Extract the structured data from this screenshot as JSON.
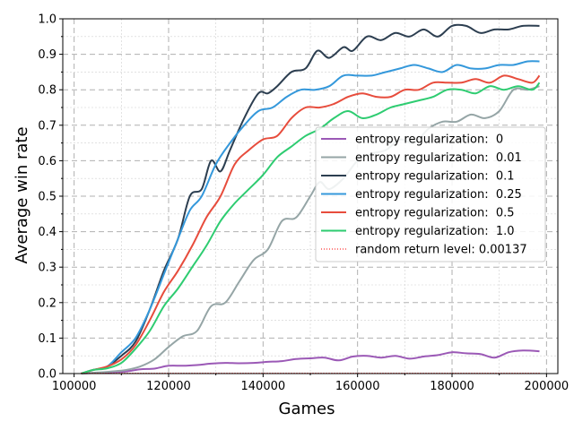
{
  "chart_data": {
    "type": "line",
    "title": "",
    "xlabel": "Games",
    "ylabel": "Average win rate",
    "xlim": [
      97600,
      202400
    ],
    "ylim": [
      0,
      1
    ],
    "xticks": [
      100000,
      120000,
      140000,
      160000,
      180000,
      200000
    ],
    "xtick_labels": [
      "100000",
      "120000",
      "140000",
      "160000",
      "180000",
      "200000"
    ],
    "yticks": [
      0,
      0.1,
      0.2,
      0.3,
      0.4,
      0.5,
      0.6,
      0.7,
      0.8,
      0.9,
      1.0
    ],
    "ytick_labels": [
      "0.0",
      "0.1",
      "0.2",
      "0.3",
      "0.4",
      "0.5",
      "0.6",
      "0.7",
      "0.8",
      "0.9",
      "1.0"
    ],
    "grid": true,
    "legend_position": "center-right",
    "series": [
      {
        "name": "entropy regularization:  0",
        "color": "#9b59b6",
        "style": "solid",
        "x": [
          101500,
          105000,
          108000,
          111000,
          114000,
          117000,
          120000,
          123000,
          126000,
          129000,
          132000,
          135000,
          138000,
          141000,
          144000,
          147000,
          150000,
          153000,
          156000,
          159000,
          162000,
          165000,
          168000,
          171000,
          174000,
          177000,
          180000,
          183000,
          186000,
          189000,
          192000,
          195000,
          198500
        ],
        "y": [
          0,
          0.002,
          0.004,
          0.006,
          0.012,
          0.014,
          0.022,
          0.022,
          0.024,
          0.028,
          0.03,
          0.029,
          0.03,
          0.033,
          0.035,
          0.041,
          0.043,
          0.045,
          0.037,
          0.048,
          0.05,
          0.045,
          0.05,
          0.042,
          0.048,
          0.052,
          0.06,
          0.057,
          0.055,
          0.045,
          0.06,
          0.065,
          0.063
        ]
      },
      {
        "name": "entropy regularization:  0.01",
        "color": "#95a5a6",
        "style": "solid",
        "x": [
          101500,
          105000,
          108000,
          111000,
          114000,
          117000,
          120000,
          123000,
          126000,
          129000,
          132000,
          135000,
          138000,
          141000,
          144000,
          147000,
          150000,
          152000,
          154000,
          157000,
          160000,
          163000,
          166000,
          169000,
          172000,
          175000,
          178000,
          181000,
          184000,
          187000,
          190000,
          193000,
          196000,
          198500
        ],
        "y": [
          0,
          0.003,
          0.006,
          0.01,
          0.02,
          0.04,
          0.075,
          0.105,
          0.12,
          0.19,
          0.2,
          0.26,
          0.32,
          0.35,
          0.43,
          0.44,
          0.5,
          0.54,
          0.52,
          0.55,
          0.6,
          0.62,
          0.63,
          0.66,
          0.65,
          0.69,
          0.71,
          0.71,
          0.73,
          0.72,
          0.74,
          0.8,
          0.8,
          0.81
        ]
      },
      {
        "name": "entropy regularization:  0.1",
        "color": "#2c3e50",
        "style": "solid",
        "x": [
          101500,
          104000,
          107000,
          110000,
          113000,
          116000,
          119000,
          122000,
          124500,
          127000,
          129000,
          131000,
          133000,
          136000,
          139000,
          141000,
          143000,
          146000,
          149000,
          151500,
          154000,
          157000,
          159000,
          162000,
          165000,
          168000,
          171000,
          174000,
          177000,
          180000,
          183000,
          186000,
          189000,
          192000,
          195000,
          198500
        ],
        "y": [
          0,
          0.01,
          0.02,
          0.05,
          0.09,
          0.18,
          0.29,
          0.38,
          0.5,
          0.52,
          0.6,
          0.57,
          0.63,
          0.72,
          0.79,
          0.79,
          0.81,
          0.85,
          0.86,
          0.91,
          0.89,
          0.92,
          0.91,
          0.95,
          0.94,
          0.96,
          0.95,
          0.97,
          0.95,
          0.98,
          0.98,
          0.96,
          0.97,
          0.97,
          0.98,
          0.98
        ]
      },
      {
        "name": "entropy regularization:  0.25",
        "color": "#3498db",
        "style": "solid",
        "x": [
          101500,
          104000,
          107000,
          110000,
          113000,
          116000,
          119000,
          122000,
          124500,
          127000,
          130000,
          133000,
          136000,
          139000,
          142000,
          145000,
          148000,
          151000,
          154000,
          157000,
          160000,
          163000,
          166000,
          169000,
          172000,
          175000,
          178000,
          181000,
          184000,
          187000,
          190000,
          193000,
          196000,
          198500
        ],
        "y": [
          0,
          0.01,
          0.02,
          0.06,
          0.1,
          0.18,
          0.28,
          0.38,
          0.46,
          0.5,
          0.59,
          0.65,
          0.7,
          0.74,
          0.75,
          0.78,
          0.8,
          0.8,
          0.81,
          0.84,
          0.84,
          0.84,
          0.85,
          0.86,
          0.87,
          0.86,
          0.85,
          0.87,
          0.86,
          0.86,
          0.87,
          0.87,
          0.88,
          0.88
        ]
      },
      {
        "name": "entropy regularization:  0.5",
        "color": "#e74c3c",
        "style": "solid",
        "x": [
          101500,
          104000,
          107000,
          110000,
          113000,
          116000,
          119000,
          122000,
          125000,
          128000,
          131000,
          134000,
          137000,
          140000,
          143000,
          146000,
          149000,
          152000,
          155000,
          158000,
          161000,
          164000,
          167000,
          170000,
          173000,
          176000,
          179000,
          182000,
          185000,
          188000,
          191000,
          194000,
          197000,
          198500
        ],
        "y": [
          0,
          0.01,
          0.02,
          0.04,
          0.08,
          0.15,
          0.23,
          0.29,
          0.36,
          0.44,
          0.5,
          0.59,
          0.63,
          0.66,
          0.67,
          0.72,
          0.75,
          0.75,
          0.76,
          0.78,
          0.79,
          0.78,
          0.78,
          0.8,
          0.8,
          0.82,
          0.82,
          0.82,
          0.83,
          0.82,
          0.84,
          0.83,
          0.82,
          0.84
        ]
      },
      {
        "name": "entropy regularization:  1.0",
        "color": "#2ecc71",
        "style": "solid",
        "x": [
          101500,
          104000,
          107000,
          110000,
          113000,
          116000,
          119000,
          122000,
          125000,
          128000,
          131000,
          134000,
          137000,
          140000,
          143000,
          146000,
          149000,
          152000,
          155000,
          158000,
          161000,
          164000,
          167000,
          170000,
          173000,
          176000,
          179000,
          182000,
          185000,
          188000,
          191000,
          194000,
          197000,
          198500
        ],
        "y": [
          0,
          0.01,
          0.015,
          0.03,
          0.07,
          0.12,
          0.19,
          0.24,
          0.3,
          0.36,
          0.43,
          0.48,
          0.52,
          0.56,
          0.61,
          0.64,
          0.67,
          0.69,
          0.72,
          0.74,
          0.72,
          0.73,
          0.75,
          0.76,
          0.77,
          0.78,
          0.8,
          0.8,
          0.79,
          0.81,
          0.8,
          0.81,
          0.8,
          0.82
        ]
      },
      {
        "name": "random return level: 0.00137",
        "color": "#ff0000",
        "style": "dotted",
        "x": [
          101500,
          198500
        ],
        "y": [
          0.00137,
          0.00137
        ]
      }
    ]
  }
}
